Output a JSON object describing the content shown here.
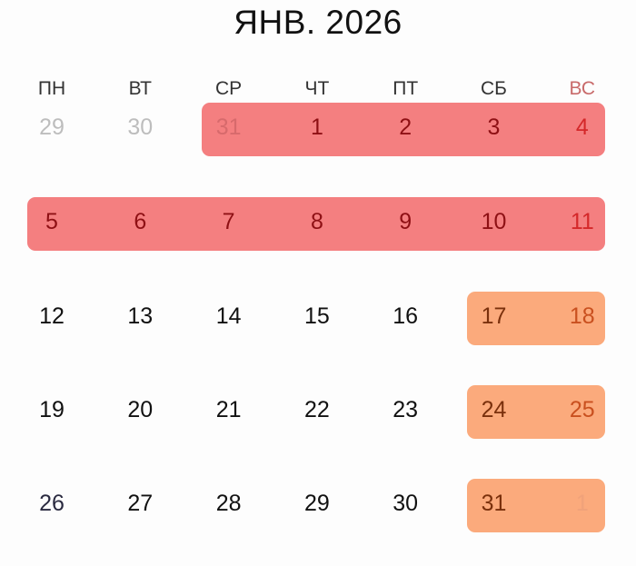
{
  "header": {
    "title": "ЯНВ. 2026"
  },
  "weekdays": [
    "ПН",
    "ВТ",
    "СР",
    "ЧТ",
    "ПТ",
    "СБ",
    "ВС"
  ],
  "colors": {
    "holiday": "#f47f80",
    "weekend": "#fbaa7c",
    "sunday_text": "#d4282a"
  },
  "weeks": [
    {
      "days": [
        {
          "label": "29",
          "state": "other"
        },
        {
          "label": "30",
          "state": "other"
        },
        {
          "label": "31",
          "state": "other",
          "mark": "red"
        },
        {
          "label": "1",
          "mark": "red"
        },
        {
          "label": "2",
          "mark": "red"
        },
        {
          "label": "3",
          "mark": "red"
        },
        {
          "label": "4",
          "mark": "red"
        }
      ]
    },
    {
      "days": [
        {
          "label": "5",
          "mark": "red"
        },
        {
          "label": "6",
          "mark": "red"
        },
        {
          "label": "7",
          "mark": "red"
        },
        {
          "label": "8",
          "mark": "red"
        },
        {
          "label": "9",
          "mark": "red"
        },
        {
          "label": "10",
          "mark": "red"
        },
        {
          "label": "11",
          "mark": "red"
        }
      ]
    },
    {
      "days": [
        {
          "label": "12"
        },
        {
          "label": "13"
        },
        {
          "label": "14"
        },
        {
          "label": "15"
        },
        {
          "label": "16"
        },
        {
          "label": "17",
          "mark": "orange"
        },
        {
          "label": "18",
          "mark": "orange"
        }
      ]
    },
    {
      "days": [
        {
          "label": "19"
        },
        {
          "label": "20"
        },
        {
          "label": "21"
        },
        {
          "label": "22"
        },
        {
          "label": "23"
        },
        {
          "label": "24",
          "mark": "orange"
        },
        {
          "label": "25",
          "mark": "orange"
        }
      ]
    },
    {
      "days": [
        {
          "label": "26"
        },
        {
          "label": "27"
        },
        {
          "label": "28"
        },
        {
          "label": "29"
        },
        {
          "label": "30"
        },
        {
          "label": "31",
          "mark": "orange"
        },
        {
          "label": "1",
          "state": "other",
          "mark": "orange"
        }
      ]
    }
  ],
  "highlights": [
    {
      "week": 0,
      "from": 2,
      "to": 6,
      "mark": "red"
    },
    {
      "week": 1,
      "from": 0,
      "to": 6,
      "mark": "red"
    },
    {
      "week": 2,
      "from": 5,
      "to": 6,
      "mark": "orange"
    },
    {
      "week": 3,
      "from": 5,
      "to": 6,
      "mark": "orange"
    },
    {
      "week": 4,
      "from": 5,
      "to": 6,
      "mark": "orange"
    }
  ]
}
